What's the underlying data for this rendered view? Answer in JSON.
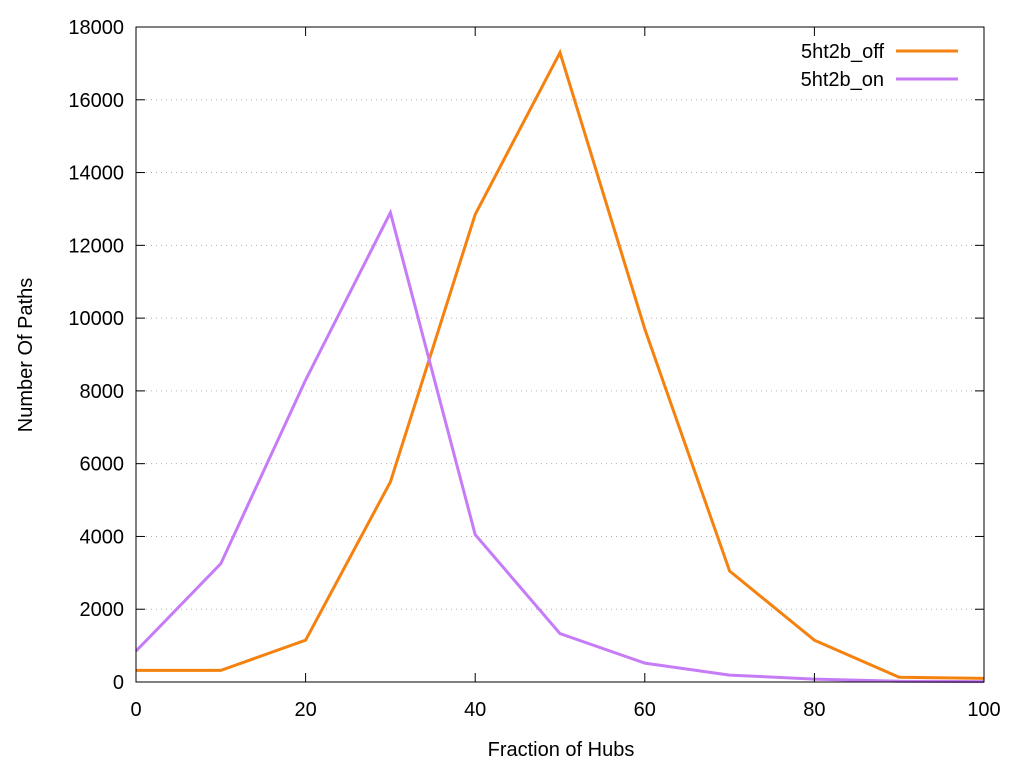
{
  "chart_data": {
    "type": "line",
    "title": "",
    "xlabel": "Fraction of Hubs",
    "ylabel": "Number Of Paths",
    "xlim": [
      0,
      100
    ],
    "ylim": [
      0,
      18000
    ],
    "x_ticks": [
      0,
      20,
      40,
      60,
      80,
      100
    ],
    "y_ticks": [
      0,
      2000,
      4000,
      6000,
      8000,
      10000,
      12000,
      14000,
      16000,
      18000
    ],
    "grid": "horizontal dotted",
    "legend_position": "top-right",
    "x": [
      0,
      10,
      20,
      30,
      40,
      50,
      60,
      70,
      80,
      90,
      100
    ],
    "series": [
      {
        "name": "5ht2b_off",
        "color": "#f5820f",
        "values": [
          320,
          320,
          1150,
          5500,
          12850,
          17300,
          9700,
          3050,
          1150,
          130,
          100
        ]
      },
      {
        "name": "5ht2b_on",
        "color": "#c77cf7",
        "values": [
          850,
          3250,
          8300,
          12900,
          4050,
          1330,
          520,
          190,
          80,
          20,
          10
        ]
      }
    ]
  }
}
